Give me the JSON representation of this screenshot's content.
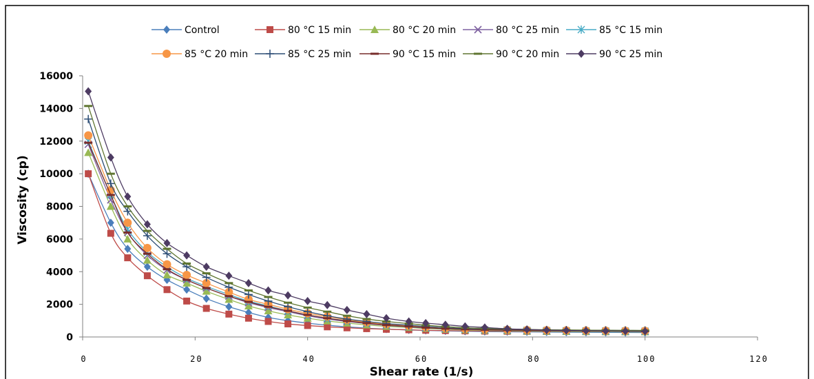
{
  "chart_data": {
    "type": "line",
    "title": "",
    "xlabel": "Shear rate (1/s)",
    "ylabel": "Viscosity (cp)",
    "xlim": [
      0,
      120
    ],
    "ylim": [
      0,
      16000
    ],
    "xticks": [
      0,
      20,
      40,
      60,
      80,
      100,
      120
    ],
    "yticks": [
      0,
      2000,
      4000,
      6000,
      8000,
      10000,
      12000,
      14000,
      16000
    ],
    "grid": false,
    "legend_position": "top",
    "x": [
      1,
      5,
      8,
      11.5,
      15,
      18.5,
      22,
      26,
      29.5,
      33,
      36.5,
      40,
      43.5,
      47,
      50.5,
      54,
      58,
      61,
      64.5,
      68,
      71.5,
      75.5,
      79,
      82.5,
      86,
      89.5,
      93,
      96.5,
      100
    ],
    "series": [
      {
        "name": "Control",
        "color": "#4a7ebb",
        "marker": "diamond",
        "values": [
          10000,
          7000,
          5400,
          4300,
          3500,
          2900,
          2350,
          1850,
          1500,
          1200,
          1000,
          850,
          720,
          620,
          540,
          480,
          430,
          400,
          370,
          350,
          330,
          320,
          310,
          300,
          290,
          285,
          280,
          275,
          270
        ]
      },
      {
        "name": "80 °C 15 min",
        "color": "#be4b48",
        "marker": "square",
        "values": [
          10000,
          6350,
          4850,
          3750,
          2900,
          2200,
          1750,
          1400,
          1150,
          950,
          800,
          700,
          620,
          560,
          510,
          470,
          440,
          410,
          390,
          375,
          360,
          350,
          345,
          340,
          335,
          330,
          325,
          320,
          320
        ]
      },
      {
        "name": "80 °C 20 min",
        "color": "#98b954",
        "marker": "triangle",
        "values": [
          11300,
          8000,
          6000,
          4700,
          3800,
          3300,
          2800,
          2300,
          1900,
          1600,
          1350,
          1150,
          980,
          850,
          740,
          650,
          580,
          520,
          470,
          430,
          400,
          380,
          360,
          350,
          340,
          330,
          325,
          320,
          315
        ]
      },
      {
        "name": "80 °C 25 min",
        "color": "#7d60a0",
        "marker": "x",
        "values": [
          11800,
          8400,
          6400,
          5000,
          4100,
          3500,
          3000,
          2500,
          2100,
          1800,
          1550,
          1300,
          1100,
          950,
          820,
          710,
          620,
          550,
          500,
          460,
          430,
          410,
          390,
          380,
          370,
          360,
          355,
          350,
          345
        ]
      },
      {
        "name": "85 °C 15 min",
        "color": "#46aac5",
        "marker": "star",
        "values": [
          12000,
          8700,
          6600,
          5200,
          4300,
          3600,
          3100,
          2600,
          2200,
          1900,
          1600,
          1350,
          1150,
          1000,
          860,
          740,
          640,
          570,
          510,
          470,
          440,
          420,
          400,
          390,
          380,
          370,
          365,
          360,
          355
        ]
      },
      {
        "name": "85 °C 20 min",
        "color": "#f79646",
        "marker": "circle",
        "values": [
          12350,
          9000,
          7000,
          5450,
          4450,
          3800,
          3300,
          2750,
          2300,
          2000,
          1700,
          1450,
          1250,
          1050,
          900,
          780,
          680,
          600,
          540,
          490,
          460,
          440,
          420,
          410,
          400,
          390,
          385,
          380,
          375
        ]
      },
      {
        "name": "85 °C 25 min",
        "color": "#2c4d75",
        "marker": "plus",
        "values": [
          13350,
          9400,
          7700,
          6200,
          5100,
          4300,
          3650,
          3050,
          2600,
          2200,
          1850,
          1550,
          1300,
          1100,
          950,
          820,
          720,
          640,
          570,
          510,
          480,
          460,
          440,
          430,
          420,
          410,
          405,
          400,
          395
        ]
      },
      {
        "name": "90 °C 15 min",
        "color": "#772c2a",
        "marker": "dash",
        "values": [
          11900,
          8700,
          6400,
          5100,
          4150,
          3500,
          3000,
          2500,
          2150,
          1850,
          1600,
          1350,
          1150,
          980,
          850,
          730,
          640,
          570,
          510,
          470,
          440,
          420,
          400,
          390,
          380,
          370,
          365,
          360,
          355
        ]
      },
      {
        "name": "90 °C 20 min",
        "color": "#5f7530",
        "marker": "dash",
        "values": [
          14150,
          10000,
          8000,
          6500,
          5400,
          4500,
          3900,
          3300,
          2850,
          2450,
          2100,
          1800,
          1550,
          1300,
          1100,
          950,
          820,
          720,
          630,
          560,
          520,
          490,
          460,
          440,
          430,
          420,
          410,
          405,
          400
        ]
      },
      {
        "name": "90 °C 25 min",
        "color": "#4d3b62",
        "marker": "diamond",
        "values": [
          15050,
          11000,
          8600,
          6900,
          5750,
          5000,
          4300,
          3750,
          3300,
          2850,
          2550,
          2200,
          1950,
          1650,
          1400,
          1150,
          950,
          850,
          750,
          650,
          580,
          500,
          460,
          420,
          400,
          380,
          370,
          360,
          350
        ]
      }
    ]
  }
}
